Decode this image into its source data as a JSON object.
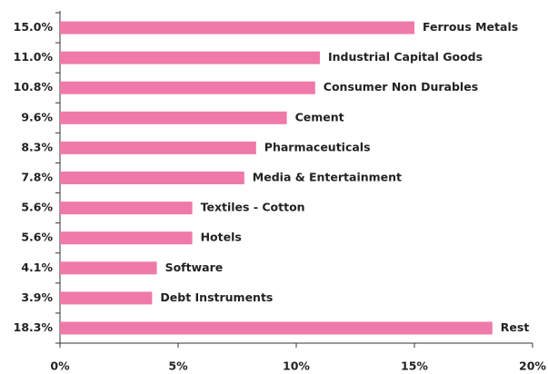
{
  "chart_data": {
    "type": "bar",
    "orientation": "horizontal",
    "categories": [
      "Ferrous Metals",
      "Industrial Capital Goods",
      "Consumer Non Durables",
      "Cement",
      "Pharmaceuticals",
      "Media & Entertainment",
      "Textiles - Cotton",
      "Hotels",
      "Software",
      "Debt Instruments",
      "Rest"
    ],
    "values": [
      15.0,
      11.0,
      10.8,
      9.6,
      8.3,
      7.8,
      5.6,
      5.6,
      4.1,
      3.9,
      18.3
    ],
    "value_labels": [
      "15.0%",
      "11.0%",
      "10.8%",
      "9.6%",
      "8.3%",
      "7.8%",
      "5.6%",
      "5.6%",
      "4.1%",
      "3.9%",
      "18.3%"
    ],
    "color": "#ef7aa9",
    "xlim": [
      0,
      20
    ],
    "xticks": [
      {
        "value": 0,
        "label": "0%"
      },
      {
        "value": 5,
        "label": "5%"
      },
      {
        "value": 10,
        "label": "10%"
      },
      {
        "value": 15,
        "label": "15%"
      },
      {
        "value": 20,
        "label": "20%"
      }
    ]
  }
}
